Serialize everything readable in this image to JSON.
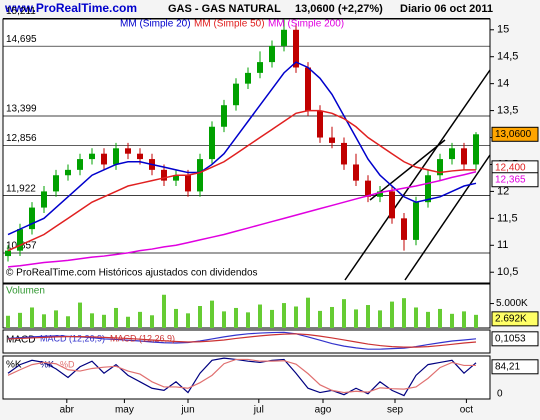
{
  "header": {
    "site": "www.ProRealTime.com",
    "period": "Diario 06 oct 2011",
    "price": "13,0600 (+2,27%)"
  },
  "chart_data": [
    {
      "type": "candlestick",
      "title": "GAS - GAS NATURAL",
      "note": "© ProRealTime.com Históricos ajustados con dividendos",
      "open": [
        10.8,
        10.9,
        11.3,
        11.7,
        12.0,
        12.3,
        12.4,
        12.6,
        12.7,
        12.5,
        12.8,
        12.7,
        12.6,
        12.4,
        12.2,
        12.3,
        12.0,
        12.6,
        13.2,
        13.6,
        14.0,
        14.2,
        14.4,
        14.7,
        15.0,
        14.3,
        13.5,
        13.0,
        12.9,
        12.5,
        12.2,
        11.9,
        12.0,
        11.5,
        11.1,
        11.8,
        12.3,
        12.6,
        12.8,
        12.5
      ],
      "high": [
        11.0,
        11.4,
        11.8,
        12.1,
        12.4,
        12.5,
        12.7,
        12.8,
        12.8,
        12.9,
        12.9,
        12.8,
        12.7,
        12.5,
        12.4,
        12.4,
        12.7,
        13.3,
        13.7,
        14.1,
        14.3,
        14.6,
        14.8,
        15.2,
        15.1,
        14.4,
        13.6,
        13.2,
        13.0,
        12.7,
        12.3,
        12.1,
        12.1,
        11.6,
        11.9,
        12.4,
        12.7,
        12.9,
        12.9,
        13.1
      ],
      "low": [
        10.7,
        10.8,
        11.2,
        11.6,
        11.9,
        12.2,
        12.3,
        12.5,
        12.4,
        12.4,
        12.6,
        12.5,
        12.3,
        12.1,
        12.1,
        11.9,
        11.9,
        12.5,
        13.1,
        13.5,
        13.9,
        14.1,
        14.3,
        14.6,
        14.2,
        13.4,
        12.9,
        12.8,
        12.4,
        12.1,
        11.8,
        11.8,
        11.4,
        10.9,
        11.0,
        11.7,
        12.2,
        12.5,
        12.4,
        12.4
      ],
      "close": [
        10.9,
        11.3,
        11.7,
        12.0,
        12.3,
        12.4,
        12.6,
        12.7,
        12.5,
        12.8,
        12.7,
        12.6,
        12.4,
        12.2,
        12.3,
        12.0,
        12.6,
        13.2,
        13.6,
        14.0,
        14.2,
        14.4,
        14.7,
        15.0,
        14.3,
        13.5,
        13.0,
        12.9,
        12.5,
        12.2,
        11.9,
        12.0,
        11.5,
        11.1,
        11.8,
        12.3,
        12.6,
        12.8,
        12.5,
        13.06
      ],
      "up_color": "#00a000",
      "down_color": "#c00000",
      "last_label": "13,0600",
      "series": [
        {
          "name": "MM (Simple 20)",
          "color": "#0000cc",
          "values": [
            11.2,
            11.3,
            11.4,
            11.5,
            11.7,
            11.9,
            12.1,
            12.3,
            12.4,
            12.5,
            12.55,
            12.55,
            12.5,
            12.45,
            12.4,
            12.35,
            12.35,
            12.5,
            12.7,
            13.0,
            13.3,
            13.6,
            13.9,
            14.2,
            14.4,
            14.3,
            14.1,
            13.8,
            13.4,
            13.0,
            12.6,
            12.3,
            12.1,
            11.9,
            11.8,
            11.85,
            11.9,
            12.0,
            12.1,
            12.15
          ]
        },
        {
          "name": "MM (Simple 50)",
          "color": "#e02020",
          "last_label": "12,400",
          "values": [
            10.9,
            11.0,
            11.1,
            11.2,
            11.35,
            11.5,
            11.65,
            11.8,
            11.9,
            12.0,
            12.1,
            12.15,
            12.2,
            12.25,
            12.3,
            12.3,
            12.35,
            12.45,
            12.55,
            12.7,
            12.85,
            13.0,
            13.15,
            13.3,
            13.45,
            13.5,
            13.5,
            13.45,
            13.35,
            13.2,
            13.0,
            12.85,
            12.7,
            12.55,
            12.45,
            12.4,
            12.35,
            12.38,
            12.4,
            12.4
          ]
        },
        {
          "name": "MM (Simple 200)",
          "color": "#e000e0",
          "last_label": "12,365",
          "values": [
            10.6,
            10.62,
            10.65,
            10.68,
            10.7,
            10.72,
            10.75,
            10.78,
            10.8,
            10.83,
            10.86,
            10.9,
            10.93,
            10.97,
            11.0,
            11.05,
            11.1,
            11.15,
            11.2,
            11.26,
            11.32,
            11.38,
            11.44,
            11.5,
            11.56,
            11.62,
            11.68,
            11.74,
            11.8,
            11.86,
            11.92,
            11.98,
            12.02,
            12.06,
            12.1,
            12.15,
            12.2,
            12.26,
            12.31,
            12.365
          ]
        }
      ],
      "levels": [
        {
          "value": 15.211,
          "label": "15,211"
        },
        {
          "value": 14.695,
          "label": "14,695"
        },
        {
          "value": 13.399,
          "label": "13,399"
        },
        {
          "value": 12.856,
          "label": "12,856"
        },
        {
          "value": 11.922,
          "label": "11,922"
        },
        {
          "value": 10.857,
          "label": "10,857"
        }
      ],
      "ylim": [
        10.3,
        15.2
      ],
      "yticks": [
        15,
        {
          "value": 14.5,
          "label": "14,5"
        },
        14,
        {
          "value": 13.5,
          "label": "13,5"
        },
        13,
        {
          "value": 12.5,
          "label": "12,5"
        },
        12,
        {
          "value": 11.5,
          "label": "11,5"
        },
        11,
        {
          "value": 10.5,
          "label": "10,5"
        }
      ],
      "xticks": [
        {
          "value": 4.9,
          "label": "abr"
        },
        {
          "value": 9.7,
          "label": "may"
        },
        {
          "value": 15,
          "label": "jun"
        },
        {
          "value": 20.9,
          "label": "jul"
        },
        {
          "value": 26.25,
          "label": "ago"
        },
        {
          "value": 32.25,
          "label": "sep"
        },
        {
          "value": 38.2,
          "label": "oct"
        }
      ]
    },
    {
      "type": "bar",
      "title": "Volumen",
      "color": "#66cc33",
      "values": [
        2500,
        3100,
        4200,
        2800,
        3600,
        2400,
        5200,
        3000,
        2700,
        4100,
        2300,
        3300,
        2600,
        6800,
        3900,
        3000,
        4500,
        5600,
        3400,
        4100,
        3200,
        4800,
        3700,
        5100,
        4400,
        6200,
        3500,
        4300,
        5900,
        3800,
        4700,
        3600,
        5400,
        6100,
        4200,
        3300,
        3900,
        2900,
        3400,
        2692
      ],
      "last_label": "2.692K",
      "ylim": [
        0,
        9000
      ],
      "yticks": [
        {
          "value": 5000,
          "label": "5.000K"
        }
      ]
    },
    {
      "type": "line",
      "title": "MACD",
      "series": [
        {
          "name": "MACD (12,26,9)",
          "color": "#3333cc",
          "values": [
            0.12,
            0.15,
            0.18,
            0.2,
            0.22,
            0.2,
            0.18,
            0.15,
            0.1,
            0.08,
            0.05,
            0.02,
            -0.02,
            -0.05,
            -0.06,
            -0.04,
            0.02,
            0.1,
            0.18,
            0.25,
            0.3,
            0.33,
            0.35,
            0.36,
            0.3,
            0.18,
            0.05,
            -0.08,
            -0.18,
            -0.25,
            -0.3,
            -0.3,
            -0.28,
            -0.26,
            -0.2,
            -0.12,
            -0.05,
            0.02,
            0.06,
            0.1053
          ]
        },
        {
          "name": "MACD (12,26,9)",
          "color": "#cc3333",
          "values": [
            0.1,
            0.12,
            0.14,
            0.16,
            0.18,
            0.19,
            0.19,
            0.18,
            0.16,
            0.14,
            0.12,
            0.09,
            0.06,
            0.03,
            0.0,
            -0.02,
            -0.01,
            0.02,
            0.06,
            0.12,
            0.17,
            0.22,
            0.26,
            0.29,
            0.3,
            0.27,
            0.21,
            0.14,
            0.06,
            -0.02,
            -0.1,
            -0.16,
            -0.2,
            -0.22,
            -0.22,
            -0.2,
            -0.16,
            -0.11,
            -0.06,
            -0.02
          ]
        }
      ],
      "last_label": "0,1053",
      "ylim": [
        -0.45,
        0.45
      ]
    },
    {
      "type": "line",
      "title": "%K",
      "series": [
        {
          "name": "%K",
          "color": "#000080",
          "values": [
            60,
            80,
            90,
            85,
            70,
            50,
            75,
            88,
            60,
            80,
            55,
            40,
            25,
            20,
            40,
            15,
            60,
            90,
            95,
            92,
            88,
            85,
            90,
            92,
            60,
            25,
            15,
            20,
            10,
            25,
            12,
            40,
            20,
            8,
            55,
            80,
            85,
            90,
            60,
            84.21
          ]
        },
        {
          "name": "%D",
          "color": "#e07070",
          "values": [
            55,
            68,
            80,
            85,
            82,
            68,
            65,
            71,
            74,
            76,
            65,
            58,
            40,
            28,
            28,
            25,
            38,
            55,
            82,
            92,
            92,
            88,
            88,
            89,
            81,
            59,
            33,
            20,
            15,
            18,
            16,
            26,
            24,
            23,
            28,
            48,
            73,
            85,
            78,
            78
          ]
        }
      ],
      "last_label": "84,21",
      "ylim": [
        0,
        100
      ],
      "yticks": [
        0
      ]
    }
  ]
}
